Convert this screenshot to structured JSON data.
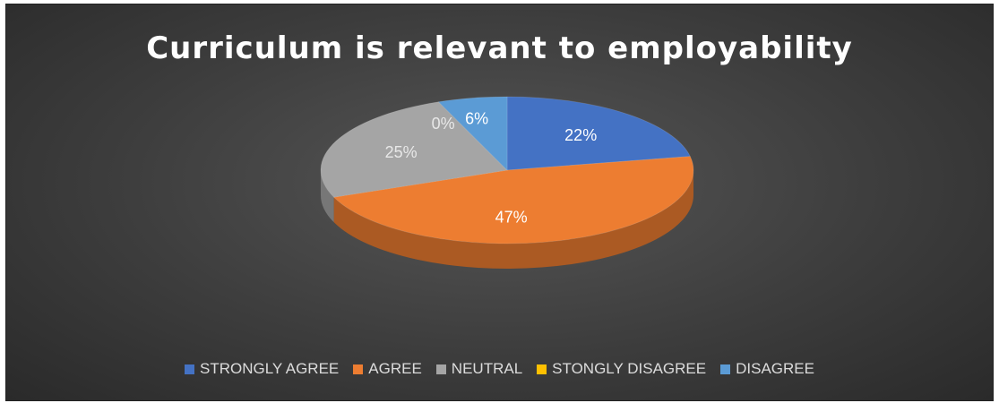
{
  "chart_data": {
    "type": "pie",
    "title": "Curriculum is relevant to employability",
    "categories": [
      "STRONGLY AGREE",
      "AGREE",
      "NEUTRAL",
      "STONGLY DISAGREE",
      "DISAGREE"
    ],
    "values": [
      22,
      47,
      25,
      0,
      6
    ],
    "data_labels": [
      "22%",
      "47%",
      "25%",
      "0%",
      "6%"
    ],
    "colors": [
      "#4472C4",
      "#ED7D31",
      "#A5A5A5",
      "#FFC000",
      "#5B9BD5"
    ],
    "legend_position": "bottom",
    "style": "3d"
  }
}
